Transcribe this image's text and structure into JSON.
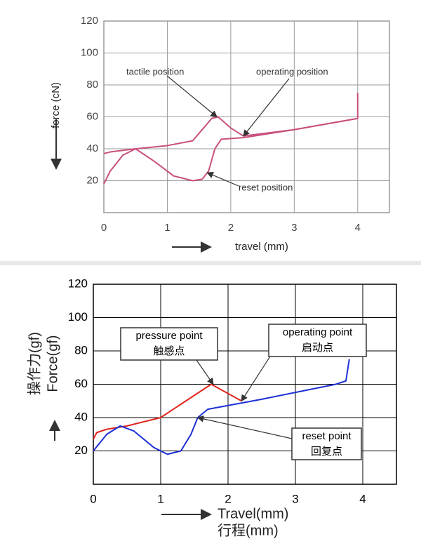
{
  "chart_data": [
    {
      "type": "line",
      "xlabel": "travel (mm)",
      "ylabel": "force (cN)",
      "xlim": [
        0,
        4.5
      ],
      "ylim": [
        0,
        120
      ],
      "xticks": [
        0,
        1,
        2,
        3,
        4
      ],
      "yticks": [
        20,
        40,
        60,
        80,
        100,
        120
      ],
      "grid": true,
      "series": [
        {
          "color": "#c8507e",
          "x": [
            0,
            0.1,
            0.5,
            1.0,
            1.4,
            1.55,
            1.7,
            1.8,
            2.0,
            2.2,
            3.0,
            4.0,
            4.0
          ],
          "values": [
            37,
            38,
            40,
            42,
            45,
            52,
            59,
            60,
            53,
            48,
            52,
            59,
            75
          ]
        },
        {
          "color": "#c8507e",
          "x": [
            0,
            0.1,
            0.3,
            0.5,
            0.8,
            1.1,
            1.4,
            1.55,
            1.65,
            1.75,
            1.85,
            2.2,
            3.0,
            4.0
          ],
          "values": [
            18,
            26,
            36,
            40,
            32,
            23,
            20,
            21,
            26,
            40,
            46,
            47,
            52,
            59
          ]
        }
      ],
      "annotations": [
        {
          "text": "tactile position"
        },
        {
          "text": "operating position"
        },
        {
          "text": "reset position"
        }
      ]
    },
    {
      "type": "line",
      "xlabel": [
        "Travel(mm)",
        "行程(mm)"
      ],
      "ylabel": [
        "操作力(gf)",
        "Force(gf)"
      ],
      "xlim": [
        0,
        4.5
      ],
      "ylim": [
        0,
        120
      ],
      "xticks": [
        0,
        1,
        2,
        3,
        4
      ],
      "yticks": [
        20,
        40,
        60,
        80,
        100,
        120
      ],
      "grid": true,
      "series": [
        {
          "color": "#e0261e",
          "x": [
            0,
            0.05,
            0.2,
            0.5,
            1.0,
            1.75,
            2.2
          ],
          "values": [
            27,
            31,
            33,
            35,
            40,
            60,
            50
          ]
        },
        {
          "color": "#1c2fd6",
          "x": [
            0,
            0.2,
            0.4,
            0.6,
            0.9,
            1.1,
            1.3,
            1.45,
            1.55,
            1.7,
            2.5,
            3.6,
            3.75,
            3.8
          ],
          "values": [
            20,
            30,
            35,
            32,
            22,
            18,
            20,
            30,
            40,
            45,
            51,
            60,
            62,
            75
          ]
        }
      ],
      "annotations": [
        {
          "text": [
            "pressure point",
            "触感点"
          ]
        },
        {
          "text": [
            "operating point",
            "启动点"
          ]
        },
        {
          "text": [
            "reset point",
            "回复点"
          ]
        }
      ]
    }
  ]
}
